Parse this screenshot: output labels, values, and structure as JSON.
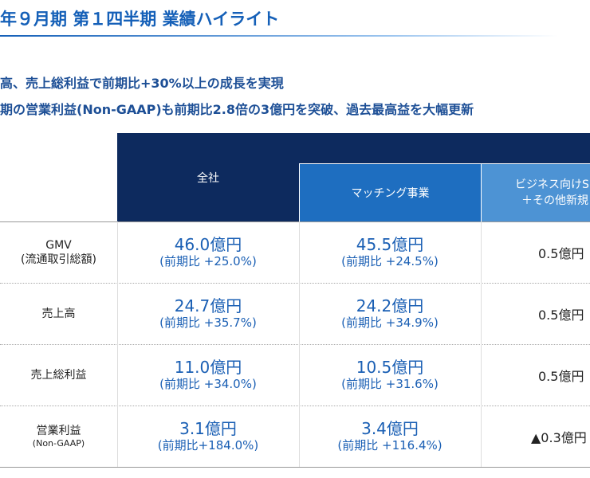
{
  "title": "年９月期 第１四半期 業績ハイライト",
  "bullets": [
    "高、売上総利益で前期比+30%以上の成長を実現",
    "期の営業利益(Non-GAAP)も前期比2.8倍の3億円を突破、過去最高益を大幅更新"
  ],
  "table": {
    "header": {
      "all": "全社",
      "matching": "マッチング事業",
      "business": [
        "ビジネス向けS",
        "＋その他新規"
      ]
    },
    "rows": [
      {
        "label": "GMV",
        "sublabel": "(流通取引総額)",
        "cells": [
          {
            "value": "46.0億円",
            "change": "(前期比 +25.0%)"
          },
          {
            "value": "45.5億円",
            "change": "(前期比 +24.5%)"
          }
        ],
        "other": "0.5億円"
      },
      {
        "label": "売上高",
        "cells": [
          {
            "value": "24.7億円",
            "change": "(前期比 +35.7%)"
          },
          {
            "value": "24.2億円",
            "change": "(前期比 +34.9%)"
          }
        ],
        "other": "0.5億円"
      },
      {
        "label": "売上総利益",
        "cells": [
          {
            "value": "11.0億円",
            "change": "(前期比 +34.0%)"
          },
          {
            "value": "10.5億円",
            "change": "(前期比 +31.6%)"
          }
        ],
        "other": "0.5億円"
      },
      {
        "label": "営業利益",
        "sublabel": "(Non-GAAP)",
        "cells": [
          {
            "value": "3.1億円",
            "change": "(前期比+184.0%)"
          },
          {
            "value": "3.4億円",
            "change": "(前期比 +116.4%)"
          }
        ],
        "other": "▲0.3億円"
      }
    ]
  }
}
